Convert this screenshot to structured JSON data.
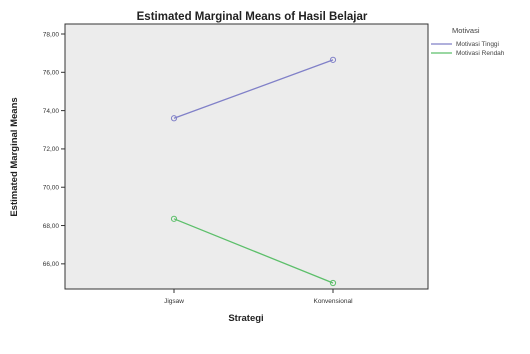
{
  "chart_data": {
    "type": "line",
    "title": "Estimated Marginal Means of Hasil Belajar",
    "xlabel": "Strategi",
    "ylabel": "Estimated Marginal Means",
    "categories": [
      "Jigsaw",
      "Konvensional"
    ],
    "ylim": [
      65.0,
      78.0
    ],
    "yticks": [
      66.0,
      68.0,
      70.0,
      72.0,
      74.0,
      76.0,
      78.0
    ],
    "ytick_labels": [
      "66,00",
      "68,00",
      "70,00",
      "72,00",
      "74,00",
      "76,00",
      "78,00"
    ],
    "grid": false,
    "legend_title": "Motivasi",
    "legend_position": "right",
    "series": [
      {
        "name": "Motivasi Tinggi",
        "color": "#8080c8",
        "values": [
          73.6,
          76.65
        ]
      },
      {
        "name": "Motivasi Rendah",
        "color": "#5cbf6a",
        "values": [
          68.35,
          65.0
        ]
      }
    ]
  }
}
